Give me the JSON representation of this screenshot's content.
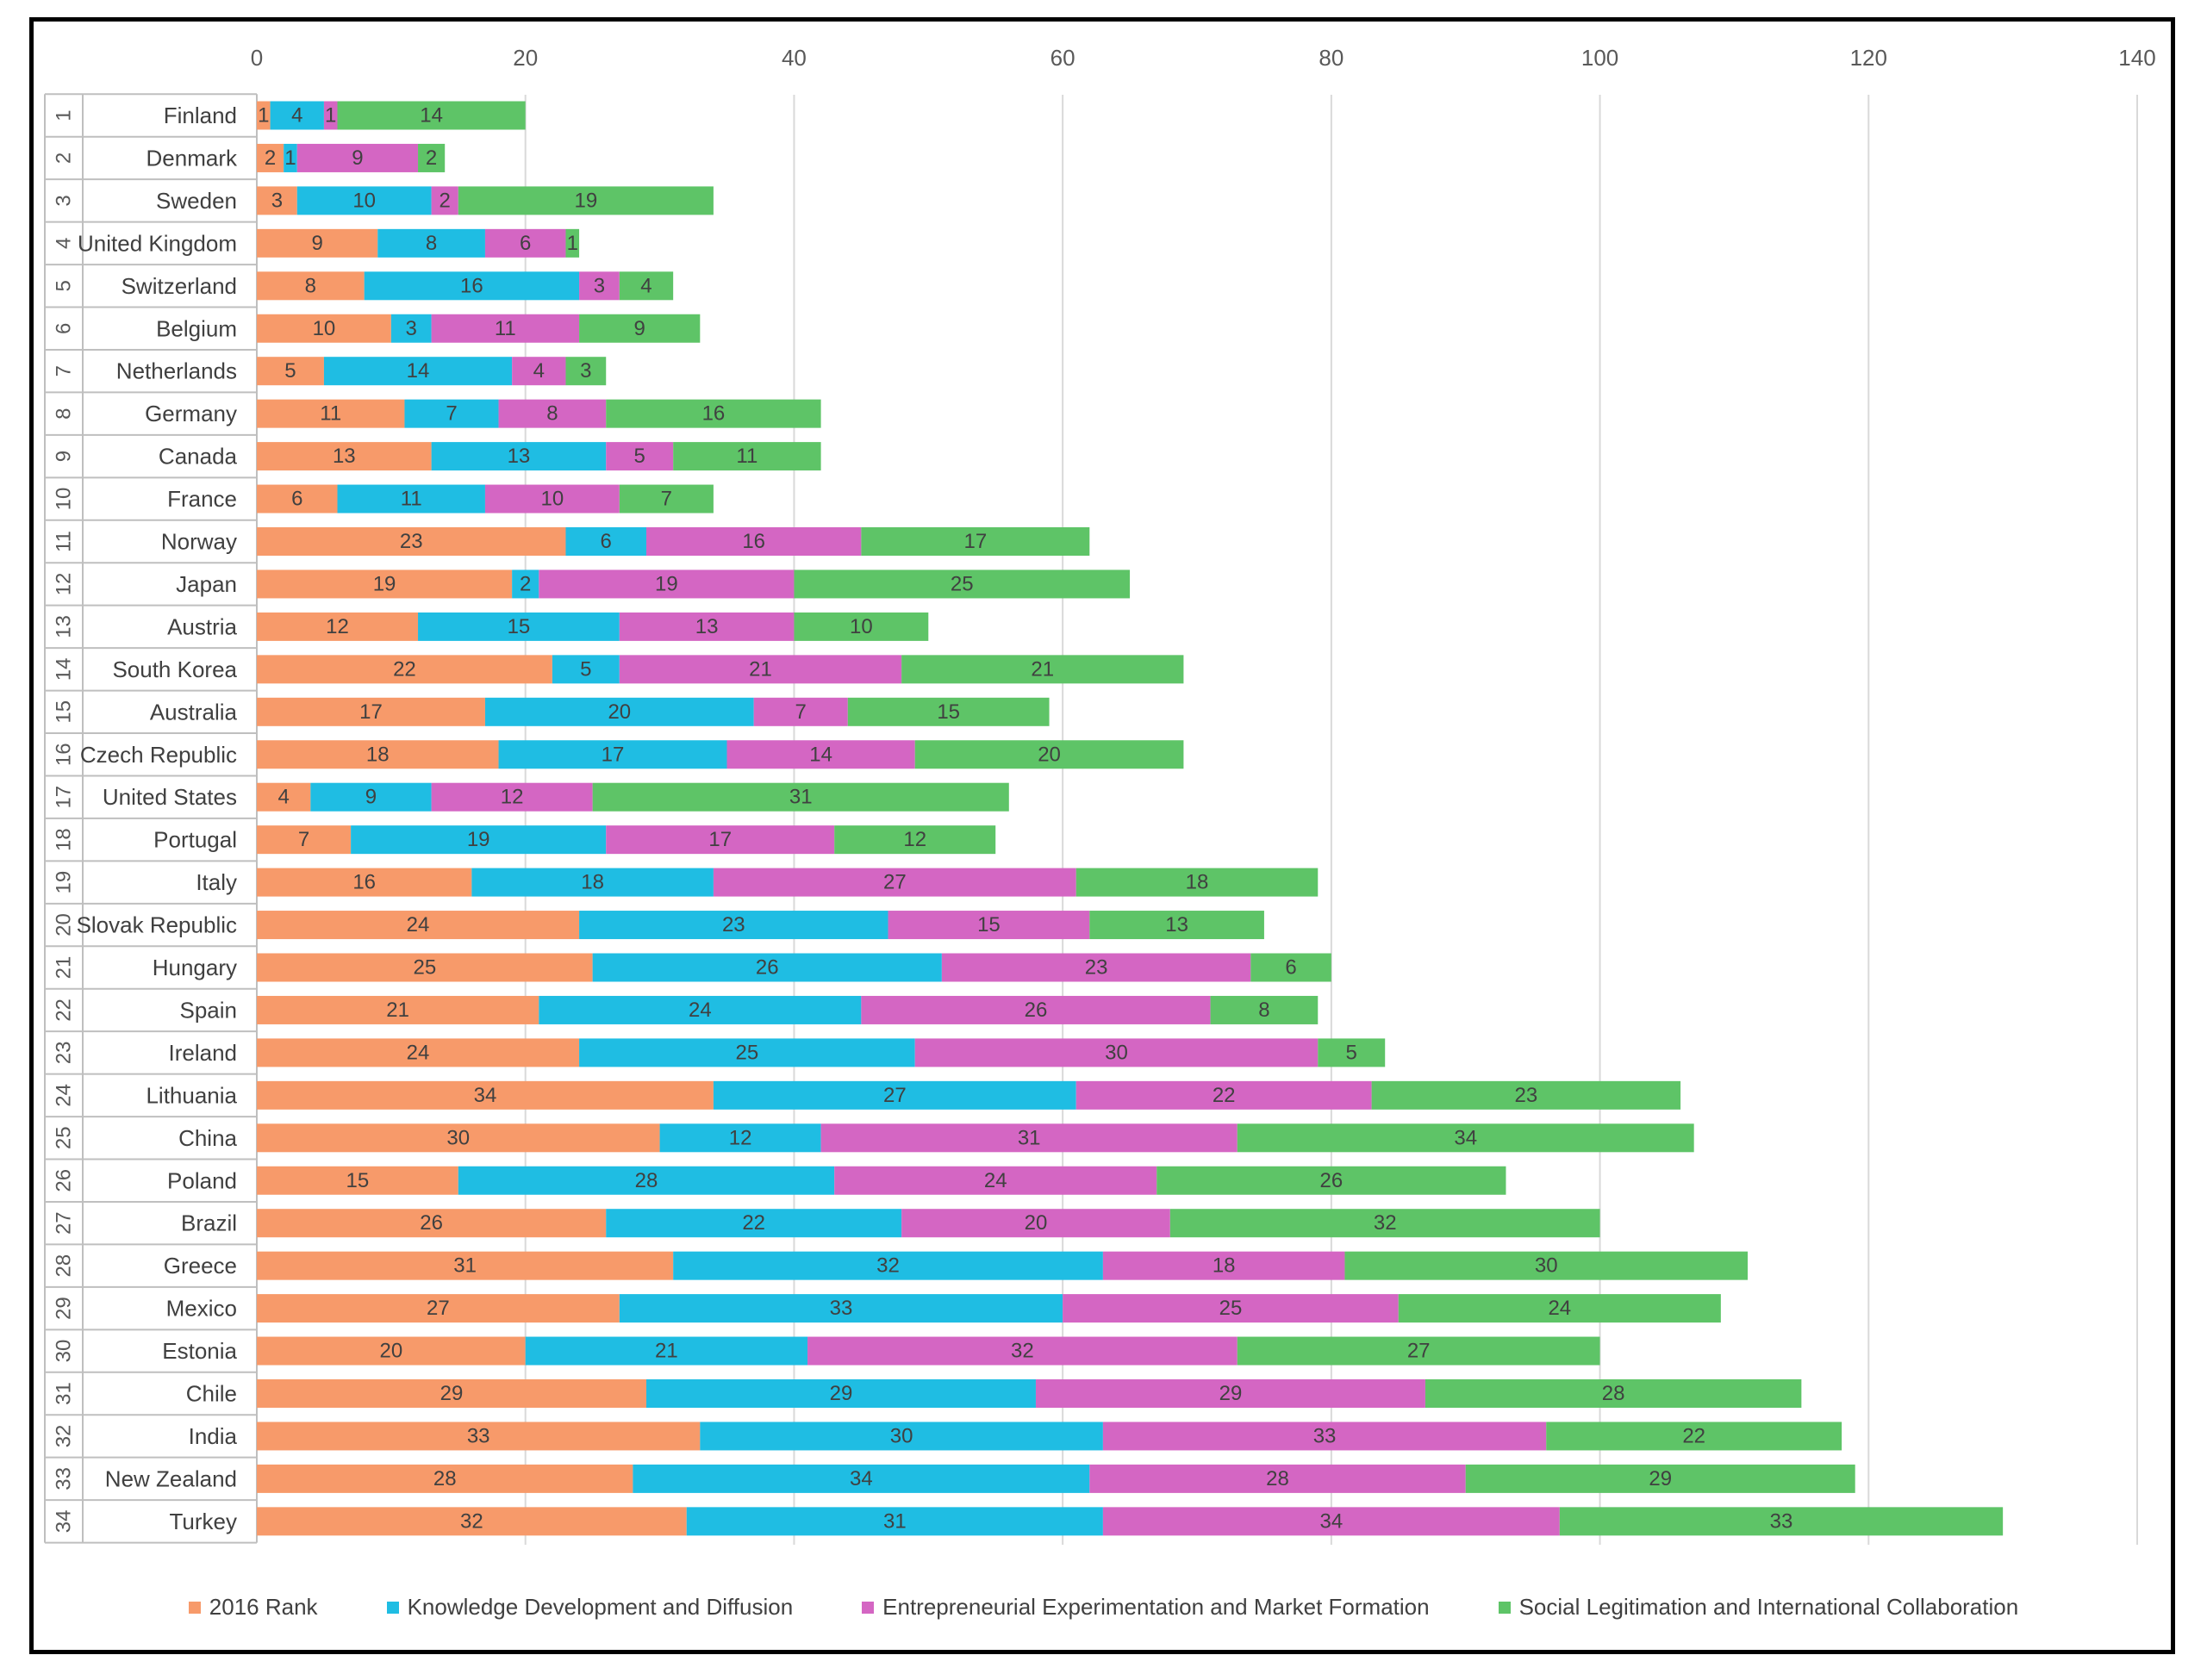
{
  "chart_data": {
    "type": "bar",
    "orientation": "horizontal",
    "stacked": true,
    "title": "",
    "xlabel": "",
    "ylabel": "",
    "xlim": [
      0,
      140
    ],
    "xticks": [
      0,
      20,
      40,
      60,
      80,
      100,
      120,
      140
    ],
    "xaxis_position": "top",
    "grid": true,
    "legend_position": "bottom",
    "ranks": [
      "1",
      "2",
      "3",
      "4",
      "5",
      "6",
      "7",
      "8",
      "9",
      "10",
      "11",
      "12",
      "13",
      "14",
      "15",
      "16",
      "17",
      "18",
      "19",
      "20",
      "21",
      "22",
      "23",
      "24",
      "25",
      "26",
      "27",
      "28",
      "29",
      "30",
      "31",
      "32",
      "33",
      "34"
    ],
    "categories": [
      "Finland",
      "Denmark",
      "Sweden",
      "United Kingdom",
      "Switzerland",
      "Belgium",
      "Netherlands",
      "Germany",
      "Canada",
      "France",
      "Norway",
      "Japan",
      "Austria",
      "South Korea",
      "Australia",
      "Czech Republic",
      "United States",
      "Portugal",
      "Italy",
      "Slovak Republic",
      "Hungary",
      "Spain",
      "Ireland",
      "Lithuania",
      "China",
      "Poland",
      "Brazil",
      "Greece",
      "Mexico",
      "Estonia",
      "Chile",
      "India",
      "New Zealand",
      "Turkey"
    ],
    "series": [
      {
        "name": "2016 Rank",
        "color": "#f79a6a",
        "values": [
          1,
          2,
          3,
          9,
          8,
          10,
          5,
          11,
          13,
          6,
          23,
          19,
          12,
          22,
          17,
          18,
          4,
          7,
          16,
          24,
          25,
          21,
          24,
          34,
          30,
          15,
          26,
          31,
          27,
          20,
          29,
          33,
          28,
          32
        ]
      },
      {
        "name": "Knowledge Development and Diffusion",
        "color": "#1fbde3",
        "values": [
          4,
          1,
          10,
          8,
          16,
          3,
          14,
          7,
          13,
          11,
          6,
          2,
          15,
          5,
          20,
          17,
          9,
          19,
          18,
          23,
          26,
          24,
          25,
          27,
          12,
          28,
          22,
          32,
          33,
          21,
          29,
          30,
          34,
          31
        ]
      },
      {
        "name": "Entrepreneurial Experimentation and Market Formation",
        "color": "#d466c3",
        "values": [
          1,
          9,
          2,
          6,
          3,
          11,
          4,
          8,
          5,
          10,
          16,
          19,
          13,
          21,
          7,
          14,
          12,
          17,
          27,
          15,
          23,
          26,
          30,
          22,
          31,
          24,
          20,
          18,
          25,
          32,
          29,
          33,
          28,
          34
        ]
      },
      {
        "name": "Social Legitimation and International Collaboration",
        "color": "#5ec467",
        "values": [
          14,
          2,
          19,
          1,
          4,
          9,
          3,
          16,
          11,
          7,
          17,
          25,
          10,
          21,
          15,
          20,
          31,
          12,
          18,
          13,
          6,
          8,
          5,
          23,
          34,
          26,
          32,
          30,
          24,
          27,
          28,
          22,
          29,
          33
        ]
      }
    ]
  }
}
